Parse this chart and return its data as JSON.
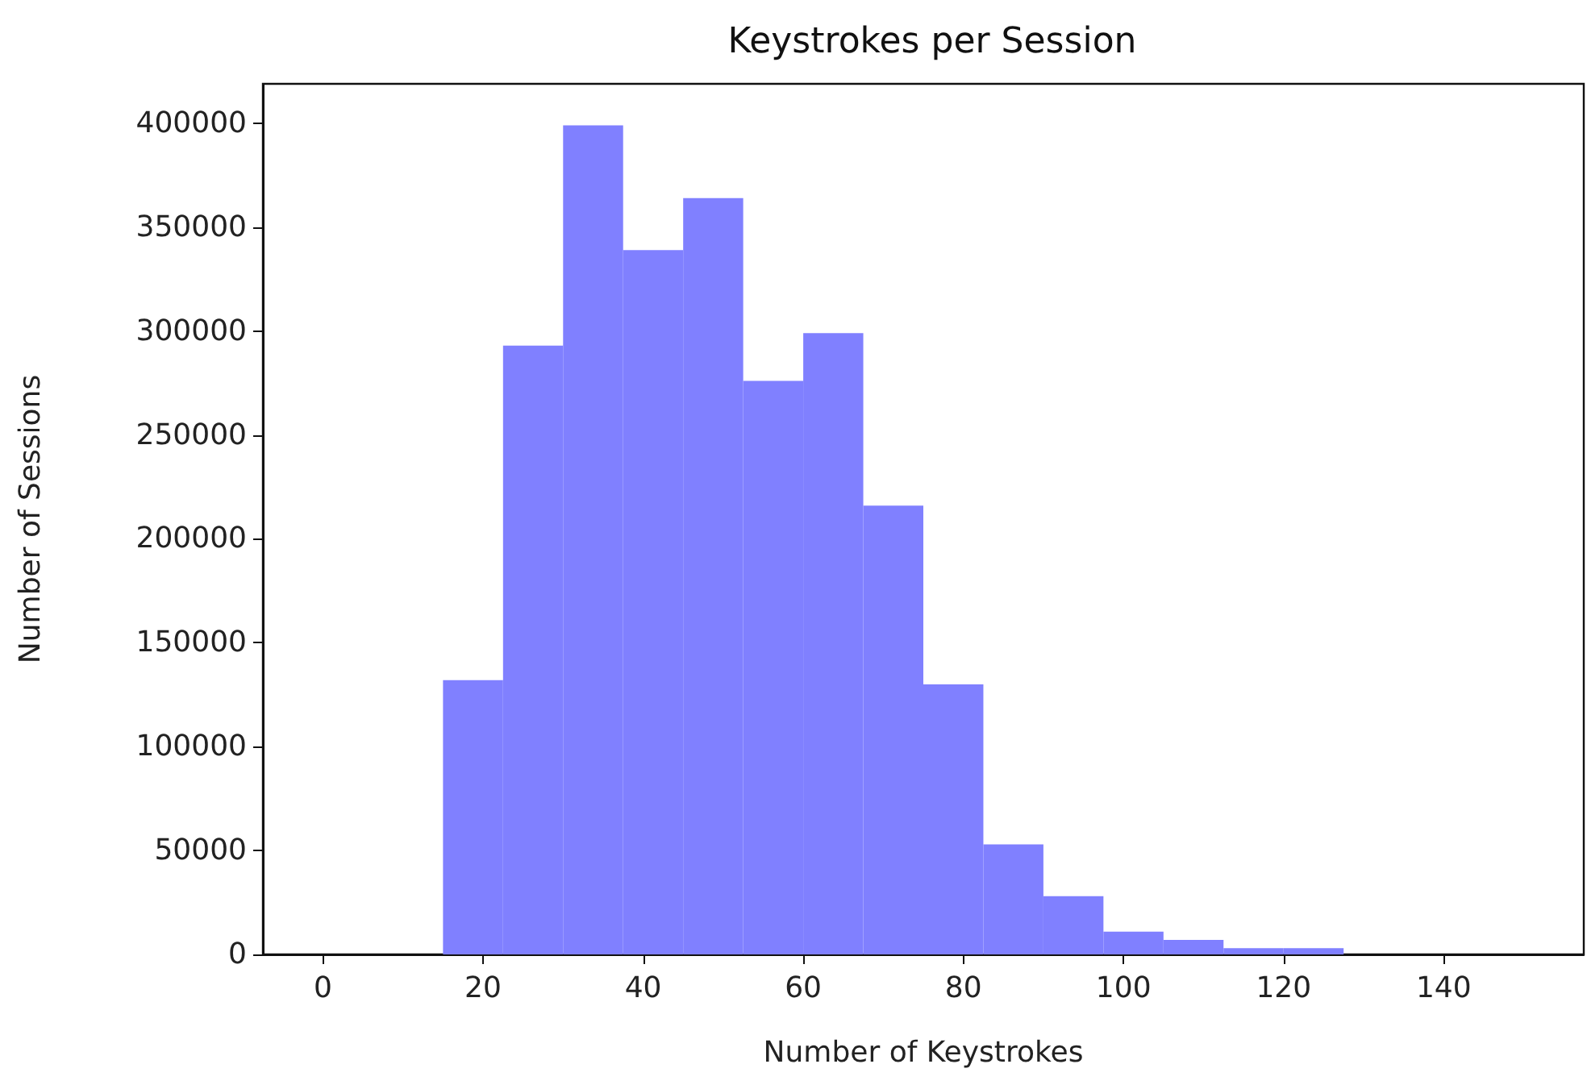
{
  "chart_data": {
    "type": "histogram",
    "title": "Keystrokes per Session",
    "xlabel": "Number of Keystrokes",
    "ylabel": "Number of Sessions",
    "bins": [
      0,
      7.5,
      15,
      22.5,
      30,
      37.5,
      45,
      52.5,
      60,
      67.5,
      75,
      82.5,
      90,
      97.5,
      105,
      112.5,
      120,
      127.5,
      135,
      142.5,
      150
    ],
    "values": [
      0,
      0,
      132000,
      293000,
      399000,
      339000,
      364000,
      276000,
      299000,
      216000,
      130000,
      53000,
      28000,
      11000,
      7000,
      3000,
      3000,
      0,
      0,
      0
    ],
    "color": "#8080ff",
    "xlim": [
      -7.5,
      157.5
    ],
    "xticks": [
      0,
      20,
      40,
      60,
      80,
      100,
      120,
      140
    ],
    "ylim": [
      0,
      419000
    ],
    "yticks": [
      0,
      50000,
      100000,
      150000,
      200000,
      250000,
      300000,
      350000,
      400000
    ],
    "grid": false
  }
}
